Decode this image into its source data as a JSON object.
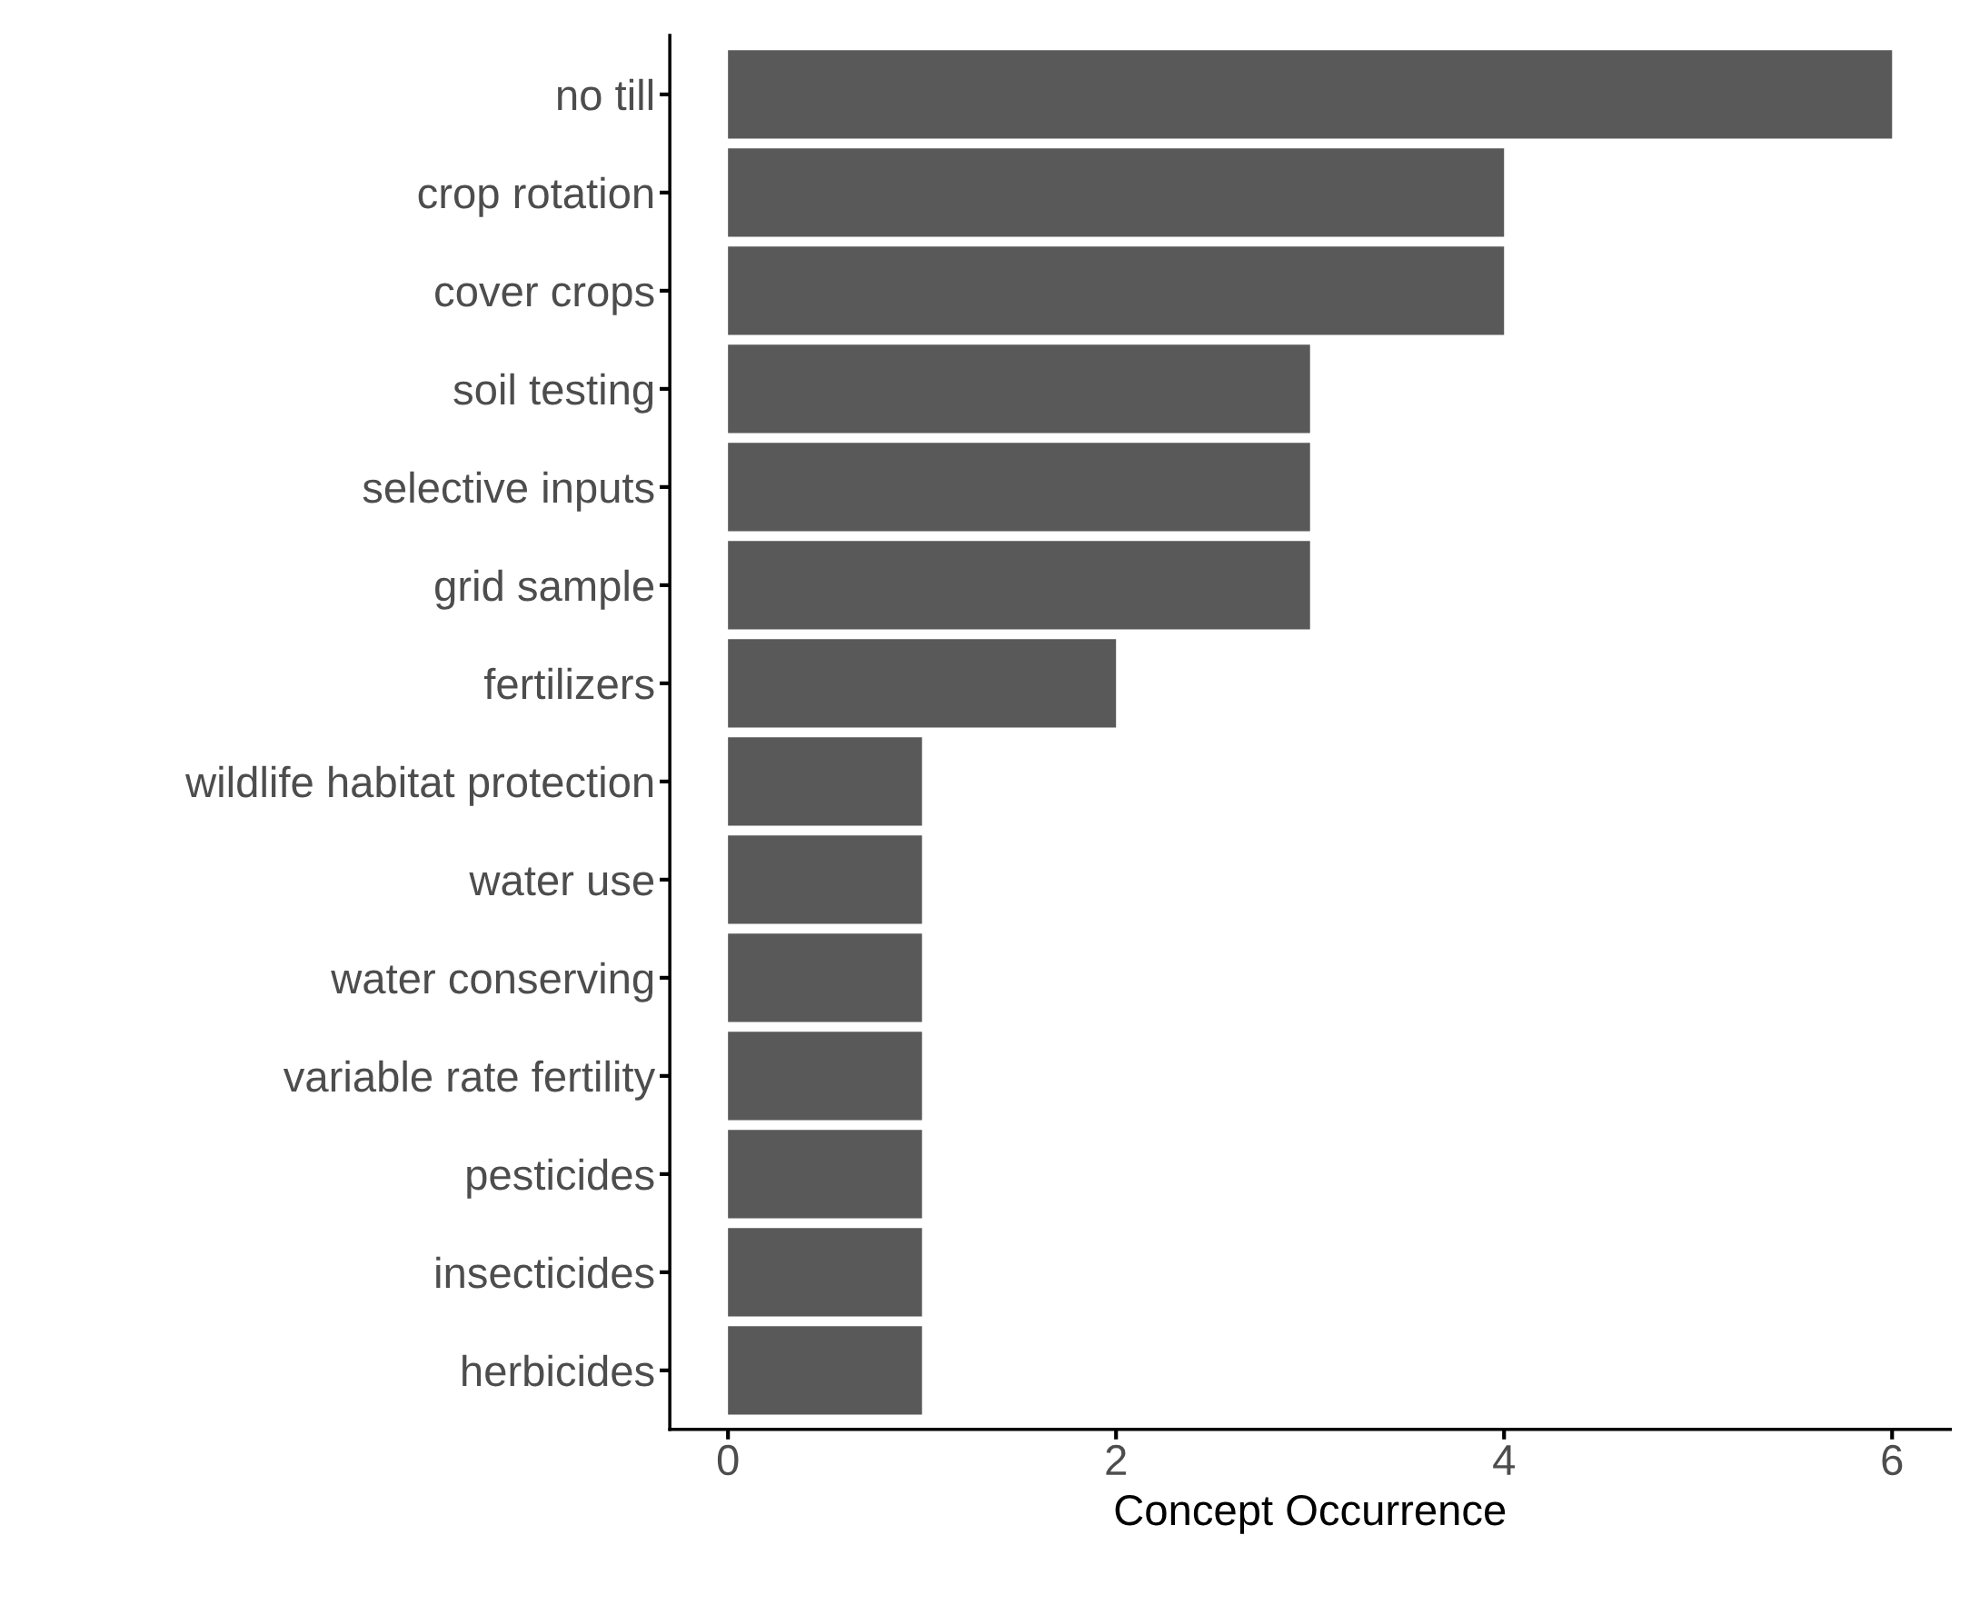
{
  "chart_data": {
    "type": "bar",
    "orientation": "horizontal",
    "xlabel": "Concept Occurrence",
    "categories": [
      "no till",
      "crop rotation",
      "cover crops",
      "soil testing",
      "selective inputs",
      "grid sample",
      "fertilizers",
      "wildlife habitat protection",
      "water use",
      "water conserving",
      "variable rate fertility",
      "pesticides",
      "insecticides",
      "herbicides"
    ],
    "values": [
      6,
      4,
      4,
      3,
      3,
      3,
      2,
      1,
      1,
      1,
      1,
      1,
      1,
      1
    ],
    "color": "#595959",
    "xlim": [
      -0.3,
      6.3
    ],
    "xticks": [
      0,
      2,
      4,
      6
    ],
    "grid": false,
    "legend": false
  }
}
